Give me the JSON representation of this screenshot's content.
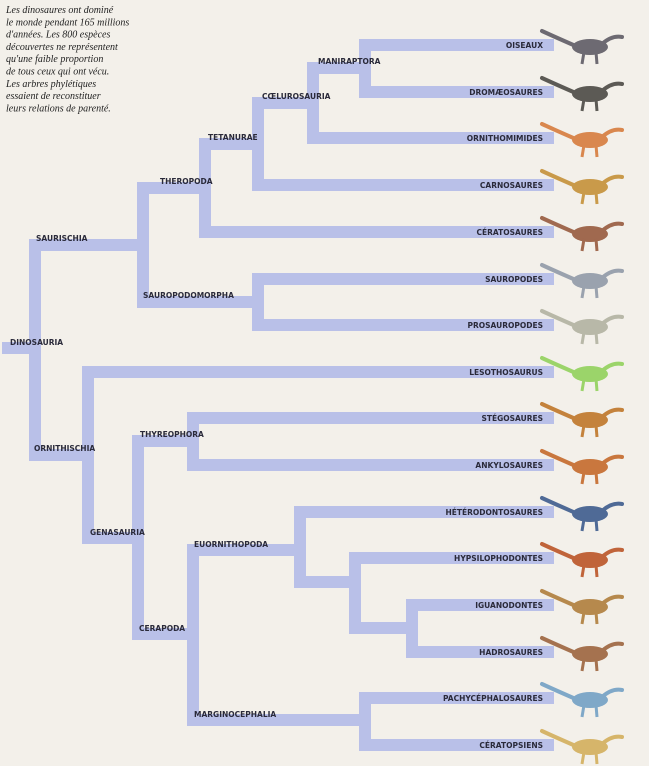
{
  "intro": [
    "Les dinosaures ont dominé",
    "le monde pendant 165 millions",
    "d'années. Les 800 espèces",
    "découvertes ne représentent",
    "qu'une faible proportion",
    "de tous ceux qui ont vécu.",
    "Les arbres phylétiques",
    "essaient de reconstituer",
    "leurs relations de parenté."
  ],
  "clades": [
    "MANIRAPTORA",
    "CŒLUROSAURIA",
    "TETANURAE",
    "THEROPODA",
    "SAUROPODOMORPHA",
    "SAURISCHIA",
    "DINOSAURIA",
    "ORNITHISCHIA",
    "GENASAURIA",
    "THYREOPHORA",
    "CERAPODA",
    "EUORNITHOPODA",
    "MARGINOCEPHALIA"
  ],
  "leaves": [
    "OISEAUX",
    "DROMÆOSAURES",
    "ORNITHOMIMIDES",
    "CARNOSAURES",
    "CÉRATOSAURES",
    "SAUROPODES",
    "PROSAUROPODES",
    "LESOTHOSAURUS",
    "STÉGOSAURES",
    "ANKYLOSAURES",
    "HÉTÉRODONTOSAURES",
    "HYPSILOPHODONTES",
    "IGUANODONTES",
    "HADROSAURES",
    "PACHYCÉPHALOSAURES",
    "CÉRATOPSIENS"
  ]
}
